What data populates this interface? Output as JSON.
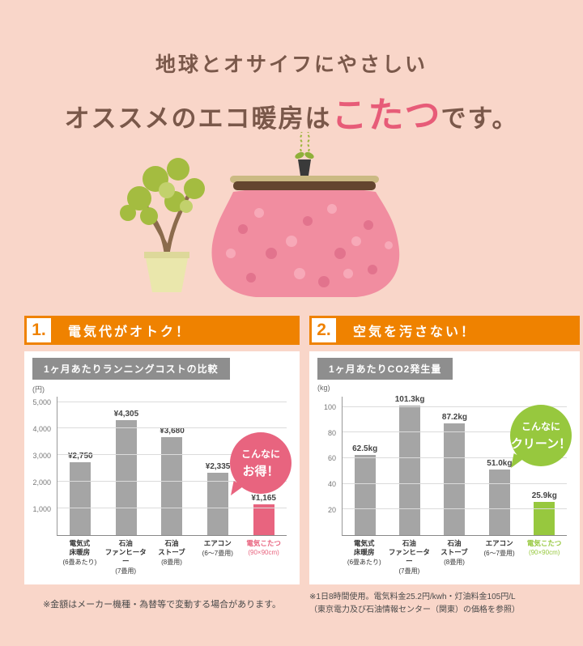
{
  "page": {
    "bg_color": "#F9D6C9",
    "title_line1": "地球とオサイフにやさしい",
    "title_line2_pre": "オススメのエコ暖房は",
    "title_line2_highlight": "こたつ",
    "title_line2_post": "です。",
    "accent_pink": "#E75C78",
    "accent_orange": "#EF8200"
  },
  "sections": [
    {
      "number": "1.",
      "label": "電気代がオトク！"
    },
    {
      "number": "2.",
      "label": "空気を汚さない！"
    }
  ],
  "notes": {
    "left": "※金額はメーカー機種・為替等で変動する場合があります。",
    "right": "※1日8時間使用。電気料金25.2円/kwh・灯油料金105円/L\n（東京電力及び石油情報センター（関東）の価格を参照）"
  },
  "chart_data": [
    {
      "type": "bar",
      "title": "1ヶ月あたりランニングコストの比較",
      "unit_label": "(円)",
      "ylabel": "円",
      "ylim": [
        0,
        5200
      ],
      "grid": true,
      "yticks": [
        1000,
        2000,
        3000,
        4000,
        5000
      ],
      "ytick_labels": [
        "1,000",
        "2,000",
        "3,000",
        "4,000",
        "5,000"
      ],
      "categories": [
        {
          "name": "電気式\n床暖房",
          "sub": "(6畳あたり)"
        },
        {
          "name": "石油\nファンヒーター",
          "sub": "(7畳用)"
        },
        {
          "name": "石油\nストーブ",
          "sub": "(8畳用)"
        },
        {
          "name": "エアコン",
          "sub": "(6～7畳用)"
        },
        {
          "name": "電気こたつ",
          "sub": "(90×90cm)"
        }
      ],
      "values": [
        2750,
        4305,
        3680,
        2335,
        1165
      ],
      "value_labels": [
        "¥2,750",
        "¥4,305",
        "¥3,680",
        "¥2,335",
        "¥1,165"
      ],
      "badge_line1": "こんなに",
      "badge_line2": "お得！",
      "bar_color": "#A5A5A5",
      "highlight_color": "#E8647F"
    },
    {
      "type": "bar",
      "title": "1ヶ月あたりCO2発生量",
      "unit_label": "(kg)",
      "ylabel": "kg",
      "ylim": [
        0,
        108
      ],
      "grid": true,
      "yticks": [
        20,
        40,
        60,
        80,
        100
      ],
      "ytick_labels": [
        "20",
        "40",
        "60",
        "80",
        "100"
      ],
      "categories": [
        {
          "name": "電気式\n床暖房",
          "sub": "(6畳あたり)"
        },
        {
          "name": "石油\nファンヒーター",
          "sub": "(7畳用)"
        },
        {
          "name": "石油\nストーブ",
          "sub": "(8畳用)"
        },
        {
          "name": "エアコン",
          "sub": "(6～7畳用)"
        },
        {
          "name": "電気こたつ",
          "sub": "(90×90cm)"
        }
      ],
      "values": [
        62.5,
        101.3,
        87.2,
        51.0,
        25.9
      ],
      "value_labels": [
        "62.5kg",
        "101.3kg",
        "87.2kg",
        "51.0kg",
        "25.9kg"
      ],
      "badge_line1": "こんなに",
      "badge_line2": "クリーン！",
      "bar_color": "#A5A5A5",
      "highlight_color": "#97C83E"
    }
  ]
}
